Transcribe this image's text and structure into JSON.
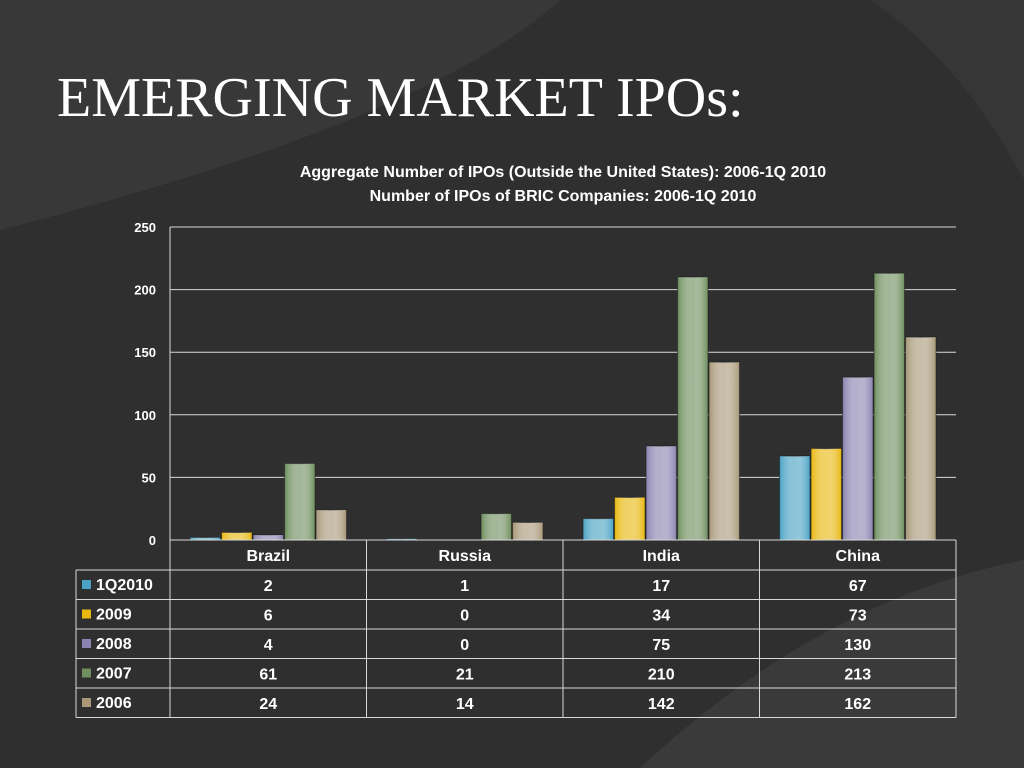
{
  "slide": {
    "title": "EMERGING MARKET IPOs:"
  },
  "colors": {
    "background": "#2f2f2f",
    "grid": "#d9d9d9",
    "text": "#ffffff"
  },
  "chart_data": {
    "type": "bar",
    "title": "Aggregate Number of IPOs (Outside the United States): 2006-1Q 2010",
    "subtitle": "Number of IPOs of BRIC Companies: 2006-1Q 2010",
    "categories": [
      "Brazil",
      "Russia",
      "India",
      "China"
    ],
    "ylim": [
      0,
      250
    ],
    "yticks": [
      0,
      50,
      100,
      150,
      200,
      250
    ],
    "grid": true,
    "legend": "data-table-left",
    "series": [
      {
        "name": "1Q2010",
        "color": "#4aa3c4",
        "values": [
          2,
          1,
          17,
          67
        ]
      },
      {
        "name": "2009",
        "color": "#e8b810",
        "values": [
          6,
          0,
          34,
          73
        ]
      },
      {
        "name": "2008",
        "color": "#8a84b0",
        "values": [
          4,
          0,
          75,
          130
        ]
      },
      {
        "name": "2007",
        "color": "#6f8f5e",
        "values": [
          61,
          21,
          210,
          213
        ]
      },
      {
        "name": "2006",
        "color": "#a89878",
        "values": [
          24,
          14,
          142,
          162
        ]
      }
    ]
  }
}
